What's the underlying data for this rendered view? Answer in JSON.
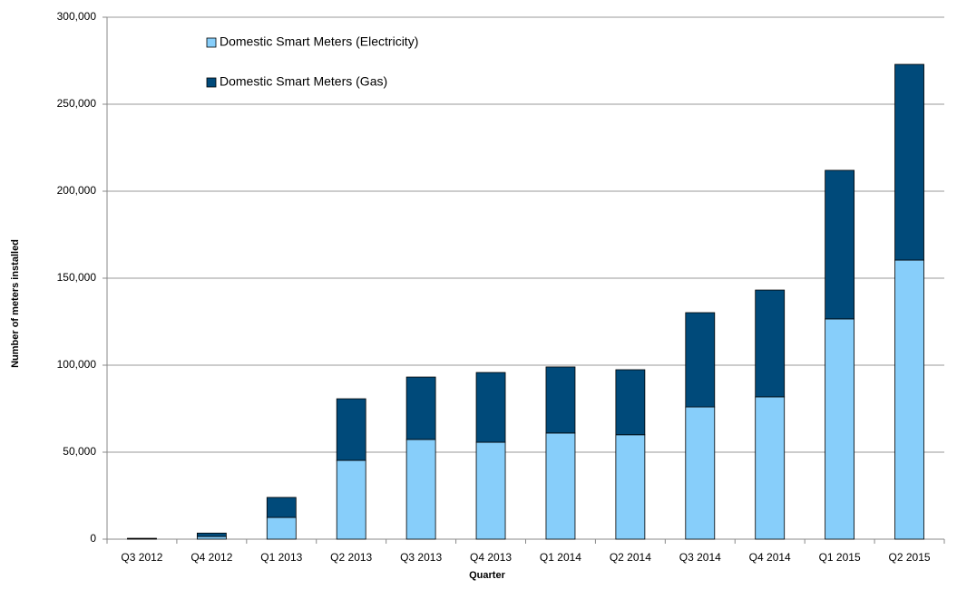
{
  "chart_data": {
    "type": "stacked-bar",
    "xlabel": "Quarter",
    "ylabel": "Number of meters installed",
    "categories": [
      "Q3 2012",
      "Q4 2012",
      "Q1 2013",
      "Q2 2013",
      "Q3 2013",
      "Q4 2013",
      "Q1 2014",
      "Q2 2014",
      "Q3 2014",
      "Q4 2014",
      "Q1 2015",
      "Q2 2015"
    ],
    "series": [
      {
        "name": "Domestic Smart Meters (Electricity)",
        "color": "#87cefa",
        "values": [
          200,
          1500,
          12500,
          45300,
          57300,
          55700,
          61000,
          60000,
          76000,
          81800,
          126600,
          160400
        ]
      },
      {
        "name": "Domestic Smart Meters (Gas)",
        "color": "#004a7a",
        "values": [
          300,
          2000,
          11500,
          35400,
          35900,
          40100,
          38000,
          37400,
          54200,
          61400,
          85400,
          112500
        ]
      }
    ],
    "ylim": [
      0,
      300000
    ],
    "yticks": [
      0,
      {
        "value": 50000,
        "label": "50,000"
      },
      {
        "value": 100000,
        "label": "100,000"
      },
      {
        "value": 150000,
        "label": "150,000"
      },
      {
        "value": 200000,
        "label": "200,000"
      },
      {
        "value": 250000,
        "label": "250,000"
      },
      {
        "value": 300000,
        "label": "300,000"
      }
    ],
    "grid": true
  }
}
